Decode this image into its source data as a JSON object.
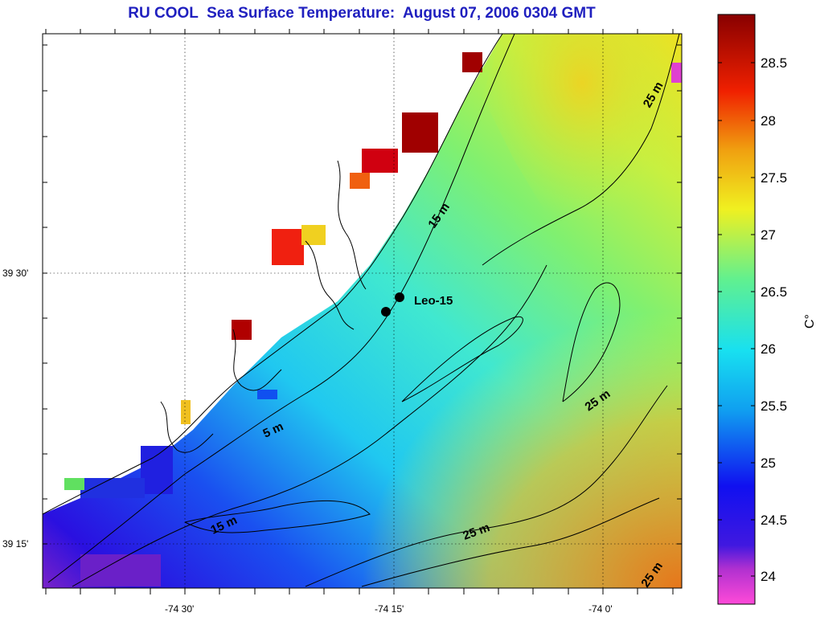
{
  "title": "RU COOL  Sea Surface Temperature:  August 07, 2006 0304 GMT",
  "axes": {
    "lat_ticks": [
      "39 30'",
      "39 15'"
    ],
    "lon_ticks": [
      "-74 30'",
      "-74 15'",
      "-74 0'"
    ]
  },
  "colorbar": {
    "unit_label": "C°",
    "ticks": [
      "28.5",
      "28",
      "27.5",
      "27",
      "26.5",
      "26",
      "25.5",
      "25",
      "24.5",
      "24"
    ],
    "range": [
      23.75,
      28.9
    ],
    "colors": {
      "low": "#ff4ad8",
      "purple": "#7a22c8",
      "blue": "#1010f0",
      "cyan": "#18e0f0",
      "green": "#60f090",
      "yellow": "#f0f020",
      "orange": "#f08010",
      "red": "#e80000",
      "high": "#880000"
    }
  },
  "contours": [
    "5 m",
    "15 m",
    "15 m",
    "25 m",
    "25 m",
    "25 m",
    "25 m"
  ],
  "station": {
    "label": "Leo-15"
  }
}
